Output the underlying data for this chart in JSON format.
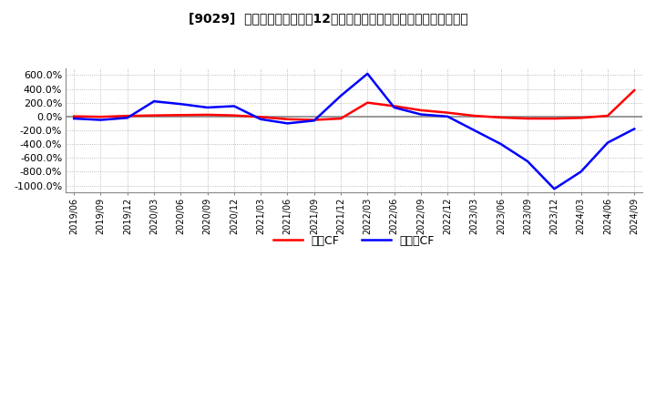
{
  "title": "[9029]  キャッシュフローの12か月移動合計の対前年同期増減率の推移",
  "legend_labels": [
    "営業CF",
    "フリーCF"
  ],
  "line_colors": [
    "#ff0000",
    "#0000ff"
  ],
  "ylim": [
    -1100,
    700
  ],
  "yticks": [
    600,
    400,
    200,
    0,
    -200,
    -400,
    -600,
    -800,
    -1000
  ],
  "ytick_labels": [
    "600.0%",
    "400.0%",
    "200.0%",
    "0.0%",
    "-200.0%",
    "-400.0%",
    "-600.0%",
    "-800.0%",
    "-1000.0%"
  ],
  "background_color": "#ffffff",
  "grid_color": "#aaaaaa",
  "x_dates": [
    "2019/06",
    "2019/09",
    "2019/12",
    "2020/03",
    "2020/06",
    "2020/09",
    "2020/12",
    "2021/03",
    "2021/06",
    "2021/09",
    "2021/12",
    "2022/03",
    "2022/06",
    "2022/09",
    "2022/12",
    "2023/03",
    "2023/06",
    "2023/09",
    "2023/12",
    "2024/03",
    "2024/06",
    "2024/09"
  ],
  "operating_cf": [
    2.0,
    -5.0,
    8.0,
    15.0,
    20.0,
    25.0,
    15.0,
    -8.0,
    -40.0,
    -50.0,
    -30.0,
    200.0,
    150.0,
    90.0,
    55.0,
    10.0,
    -15.0,
    -30.0,
    -30.0,
    -20.0,
    10.0,
    380.0
  ],
  "free_cf": [
    -30.0,
    -50.0,
    -20.0,
    220.0,
    180.0,
    130.0,
    150.0,
    -40.0,
    -100.0,
    -60.0,
    300.0,
    620.0,
    130.0,
    30.0,
    0.0,
    -200.0,
    -400.0,
    -650.0,
    -1050.0,
    -800.0,
    -380.0,
    -180.0
  ]
}
